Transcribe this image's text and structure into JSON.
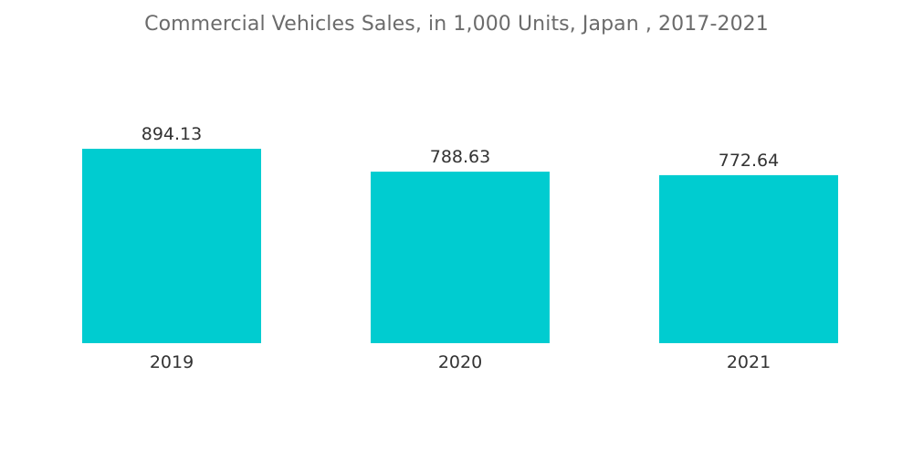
{
  "chart_data": {
    "type": "bar",
    "title": "Commercial Vehicles Sales, in 1,000 Units, Japan , 2017-2021",
    "categories": [
      "2019",
      "2020",
      "2021"
    ],
    "values": [
      894.13,
      788.63,
      772.64
    ],
    "value_labels": [
      "894.13",
      "788.63",
      "772.64"
    ],
    "xlabel": "",
    "ylabel": "",
    "ylim": [
      0,
      920
    ],
    "grid": false,
    "legend": "none",
    "bar_color": "#00ccd0"
  }
}
